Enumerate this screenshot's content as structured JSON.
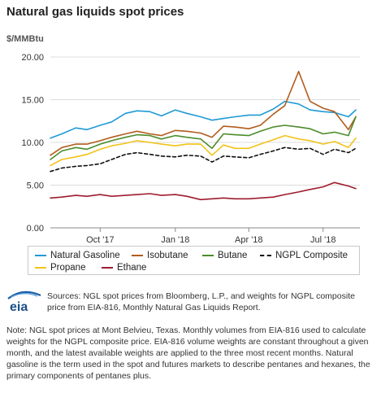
{
  "title": "Natural gas liquids spot prices",
  "unit_label": "$/MMBtu",
  "sources": "Sources: NGL spot prices from Bloomberg, L.P., and weights for NGPL composite price from EIA-816, Monthly Natural Gas Liquids Report.",
  "note": "Note: NGL spot prices at Mont Belvieu, Texas. Monthly volumes from EIA-816 used to calculate weights for the NGPL composite price. EIA-816 volume weights are constant throughout a given month, and the latest available weights are applied to the three most recent months. Natural gasoline is the term used in the spot and futures markets to describe pentanes and hexanes, the primary components of pentanes plus.",
  "logo_text": "eia",
  "chart_data": {
    "type": "line",
    "title": "Natural gas liquids spot prices",
    "ylabel": "$/MMBtu",
    "xlabel": "",
    "ylim": [
      0,
      20
    ],
    "yticks": [
      "0.00",
      "5.00",
      "10.00",
      "15.00",
      "20.00"
    ],
    "xlim": [
      "2017-08-01",
      "2018-08-15"
    ],
    "xticks": [
      {
        "date": "2017-10-01",
        "label": "Oct '17"
      },
      {
        "date": "2018-01-01",
        "label": "Jan '18"
      },
      {
        "date": "2018-04-01",
        "label": "Apr '18"
      },
      {
        "date": "2018-07-01",
        "label": "Jul '18"
      }
    ],
    "grid": "horizontal",
    "legend_position": "bottom",
    "x": [
      "2017-08-01",
      "2017-08-15",
      "2017-09-01",
      "2017-09-15",
      "2017-10-01",
      "2017-10-15",
      "2017-11-01",
      "2017-11-15",
      "2017-12-01",
      "2017-12-15",
      "2018-01-01",
      "2018-01-15",
      "2018-02-01",
      "2018-02-15",
      "2018-03-01",
      "2018-03-15",
      "2018-04-01",
      "2018-04-15",
      "2018-05-01",
      "2018-05-15",
      "2018-06-01",
      "2018-06-15",
      "2018-07-01",
      "2018-07-15",
      "2018-08-01",
      "2018-08-10"
    ],
    "series": [
      {
        "name": "Natural Gasoline",
        "color": "#1f9ad6",
        "dash": "solid",
        "values": [
          10.5,
          11.0,
          11.7,
          11.5,
          12.0,
          12.4,
          13.4,
          13.7,
          13.6,
          13.1,
          13.8,
          13.4,
          13.0,
          12.6,
          12.8,
          13.0,
          13.2,
          13.2,
          13.9,
          14.8,
          14.5,
          13.8,
          13.6,
          13.5,
          13.0,
          13.8
        ]
      },
      {
        "name": "Isobutane",
        "color": "#b35c1e",
        "dash": "solid",
        "values": [
          8.5,
          9.4,
          9.8,
          9.8,
          10.2,
          10.6,
          11.0,
          11.3,
          11.0,
          10.8,
          11.4,
          11.3,
          11.1,
          10.6,
          11.9,
          11.8,
          11.6,
          12.0,
          13.3,
          14.3,
          18.3,
          14.8,
          14.0,
          13.6,
          11.5,
          13.0
        ]
      },
      {
        "name": "Butane",
        "color": "#4c8c2b",
        "dash": "solid",
        "values": [
          8.0,
          9.0,
          9.4,
          9.2,
          9.8,
          10.2,
          10.6,
          10.9,
          10.8,
          10.4,
          10.8,
          10.6,
          10.4,
          9.3,
          11.0,
          10.9,
          10.8,
          11.3,
          11.8,
          12.0,
          11.8,
          11.6,
          11.0,
          11.2,
          10.8,
          13.0
        ]
      },
      {
        "name": "NGPL Composite",
        "color": "#111111",
        "dash": "dashed",
        "values": [
          6.6,
          7.0,
          7.2,
          7.3,
          7.5,
          8.0,
          8.6,
          8.8,
          8.6,
          8.4,
          8.3,
          8.5,
          8.4,
          7.7,
          8.4,
          8.3,
          8.2,
          8.6,
          9.0,
          9.4,
          9.2,
          9.3,
          8.6,
          9.2,
          8.8,
          9.3
        ]
      },
      {
        "name": "Propane",
        "color": "#f2c319",
        "dash": "solid",
        "values": [
          7.3,
          8.0,
          8.3,
          8.6,
          9.2,
          9.6,
          9.9,
          10.2,
          10.0,
          9.8,
          9.6,
          9.8,
          9.8,
          8.5,
          9.7,
          9.3,
          9.3,
          9.8,
          10.3,
          10.8,
          10.4,
          10.2,
          9.8,
          10.1,
          9.4,
          10.5
        ]
      },
      {
        "name": "Ethane",
        "color": "#9e1c2e",
        "dash": "solid",
        "values": [
          3.5,
          3.6,
          3.8,
          3.7,
          3.9,
          3.7,
          3.8,
          3.9,
          4.0,
          3.8,
          3.9,
          3.7,
          3.3,
          3.4,
          3.5,
          3.4,
          3.4,
          3.5,
          3.6,
          3.9,
          4.2,
          4.5,
          4.8,
          5.3,
          4.9,
          4.6
        ]
      }
    ]
  }
}
